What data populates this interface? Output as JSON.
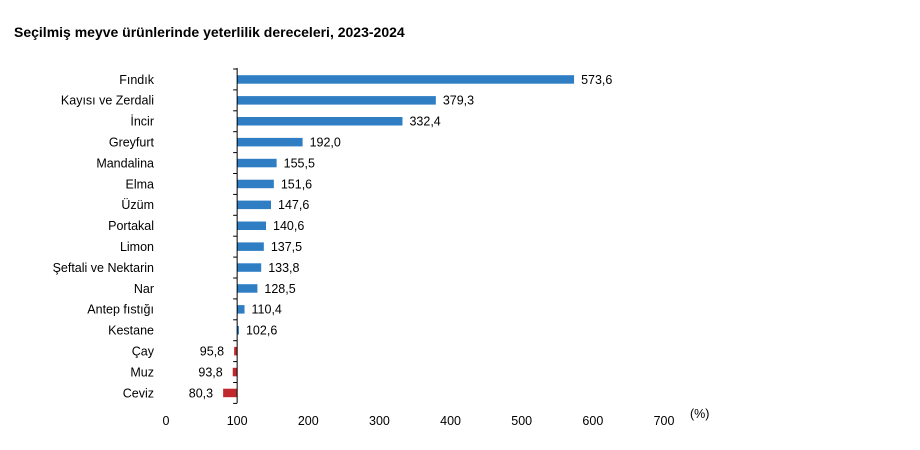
{
  "chart_data": {
    "type": "bar",
    "orientation": "horizontal",
    "title": "Seçilmiş meyve ürünlerinde yeterlilik dereceleri, 2023-2024",
    "xlabel": "(%)",
    "ylabel": "",
    "xlim": [
      0,
      700
    ],
    "x_ticks": [
      "0",
      "100",
      "200",
      "300",
      "400",
      "500",
      "600",
      "700"
    ],
    "baseline": 100,
    "grid": false,
    "legend": "none",
    "categories": [
      "Fındık",
      "Kayısı ve Zerdali",
      "İncir",
      "Greyfurt",
      "Mandalina",
      "Elma",
      "Üzüm",
      "Portakal",
      "Limon",
      "Şeftali ve Nektarin",
      "Nar",
      "Antep fıstığı",
      "Kestane",
      "Çay",
      "Muz",
      "Ceviz"
    ],
    "values": [
      573.6,
      379.3,
      332.4,
      192.0,
      155.5,
      151.6,
      147.6,
      140.6,
      137.5,
      133.8,
      128.5,
      110.4,
      102.6,
      95.8,
      93.8,
      80.3
    ],
    "value_labels": [
      "573,6",
      "379,3",
      "332,4",
      "192,0",
      "155,5",
      "151,6",
      "147,6",
      "140,6",
      "137,5",
      "133,8",
      "128,5",
      "110,4",
      "102,6",
      "95,8",
      "93,8",
      "80,3"
    ],
    "colors": {
      "above": "#2f7ec4",
      "below": "#c0282d",
      "axis": "#000000"
    }
  }
}
